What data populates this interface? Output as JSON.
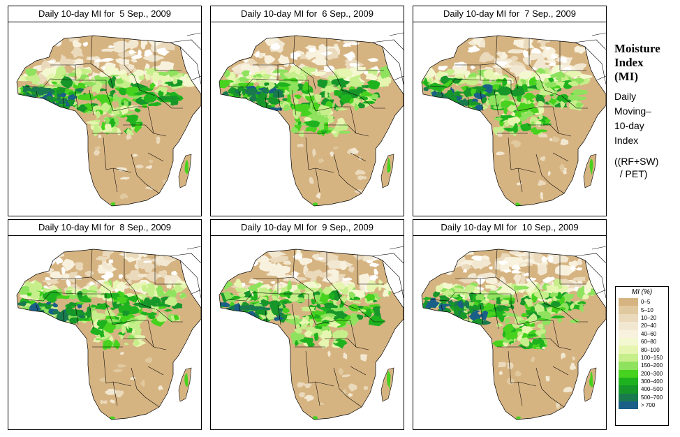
{
  "panels": [
    {
      "title": "Daily 10-day MI for  5 Sep., 2009",
      "variant": 0
    },
    {
      "title": "Daily 10-day MI for  6 Sep., 2009",
      "variant": 1
    },
    {
      "title": "Daily 10-day MI for  7 Sep., 2009",
      "variant": 2
    },
    {
      "title": "Daily 10-day MI for  8 Sep., 2009",
      "variant": 3
    },
    {
      "title": "Daily 10-day MI for  9 Sep., 2009",
      "variant": 4
    },
    {
      "title": "Daily 10-day MI for  10 Sep., 2009",
      "variant": 5
    }
  ],
  "side": {
    "title_lines": [
      "Moisture",
      "Index",
      "(MI)"
    ],
    "desc_lines": [
      "Daily",
      "Moving–",
      "10-day",
      "Index"
    ],
    "formula_lines": [
      "((RF+SW)",
      "  / PET)"
    ]
  },
  "legend": {
    "title": "MI (%)",
    "entries": [
      {
        "label": "0–5",
        "color": "#d6b482"
      },
      {
        "label": "5–10",
        "color": "#e1c99f"
      },
      {
        "label": "10–20",
        "color": "#ead9bb"
      },
      {
        "label": "20–40",
        "color": "#f2e8d2"
      },
      {
        "label": "40–60",
        "color": "#f8f1de"
      },
      {
        "label": "60–80",
        "color": "#f4f8d0"
      },
      {
        "label": "80–100",
        "color": "#e6f5b0"
      },
      {
        "label": "100–150",
        "color": "#c6ee8a"
      },
      {
        "label": "150–200",
        "color": "#8ee25e"
      },
      {
        "label": "200–300",
        "color": "#46d21e"
      },
      {
        "label": "300–400",
        "color": "#1fb21f"
      },
      {
        "label": "400–500",
        "color": "#17962a"
      },
      {
        "label": "500–700",
        "color": "#197a4e"
      },
      {
        "label": "> 700",
        "color": "#1a5f87"
      }
    ]
  }
}
